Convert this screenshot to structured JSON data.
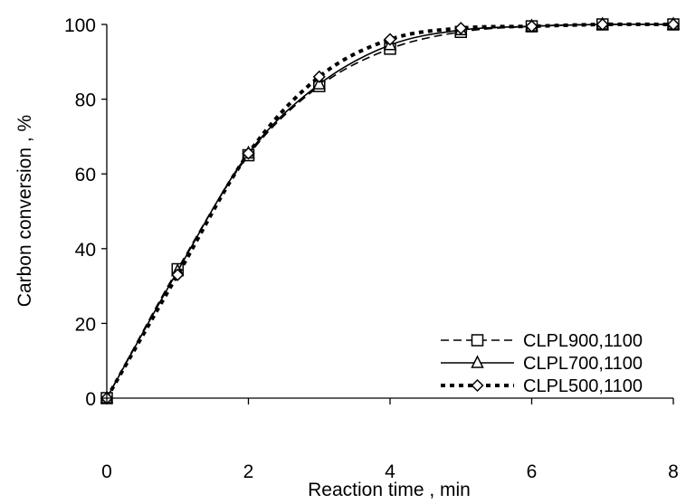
{
  "chart_data": {
    "type": "line",
    "xlabel": "Reaction time , min",
    "ylabel": "Carbon conversion , %",
    "xlim": [
      0,
      8
    ],
    "ylim": [
      0,
      100
    ],
    "x_ticks": [
      "0",
      "2",
      "4",
      "6",
      "8"
    ],
    "y_ticks": [
      "0",
      "20",
      "40",
      "60",
      "80",
      "100"
    ],
    "grid": false,
    "legend_position": "bottom-right",
    "series": [
      {
        "name": "CLPL900,1100",
        "line_style": "dashed",
        "marker": "square",
        "x": [
          0,
          1,
          2,
          3,
          4,
          5,
          6,
          7,
          8
        ],
        "y": [
          0,
          34.5,
          65,
          83.5,
          93.5,
          98,
          99.5,
          100,
          100
        ]
      },
      {
        "name": "CLPL700,1100",
        "line_style": "solid",
        "marker": "triangle",
        "x": [
          0,
          1,
          2,
          3,
          4,
          5,
          6,
          7,
          8
        ],
        "y": [
          0,
          34,
          65.5,
          84,
          94.5,
          98.5,
          99.5,
          100,
          100
        ]
      },
      {
        "name": "CLPL500,1100",
        "line_style": "dotted",
        "marker": "diamond",
        "x": [
          0,
          1,
          2,
          3,
          4,
          5,
          6,
          7,
          8
        ],
        "y": [
          0,
          33,
          65.5,
          86,
          96,
          99,
          99.5,
          100,
          100
        ]
      }
    ]
  }
}
